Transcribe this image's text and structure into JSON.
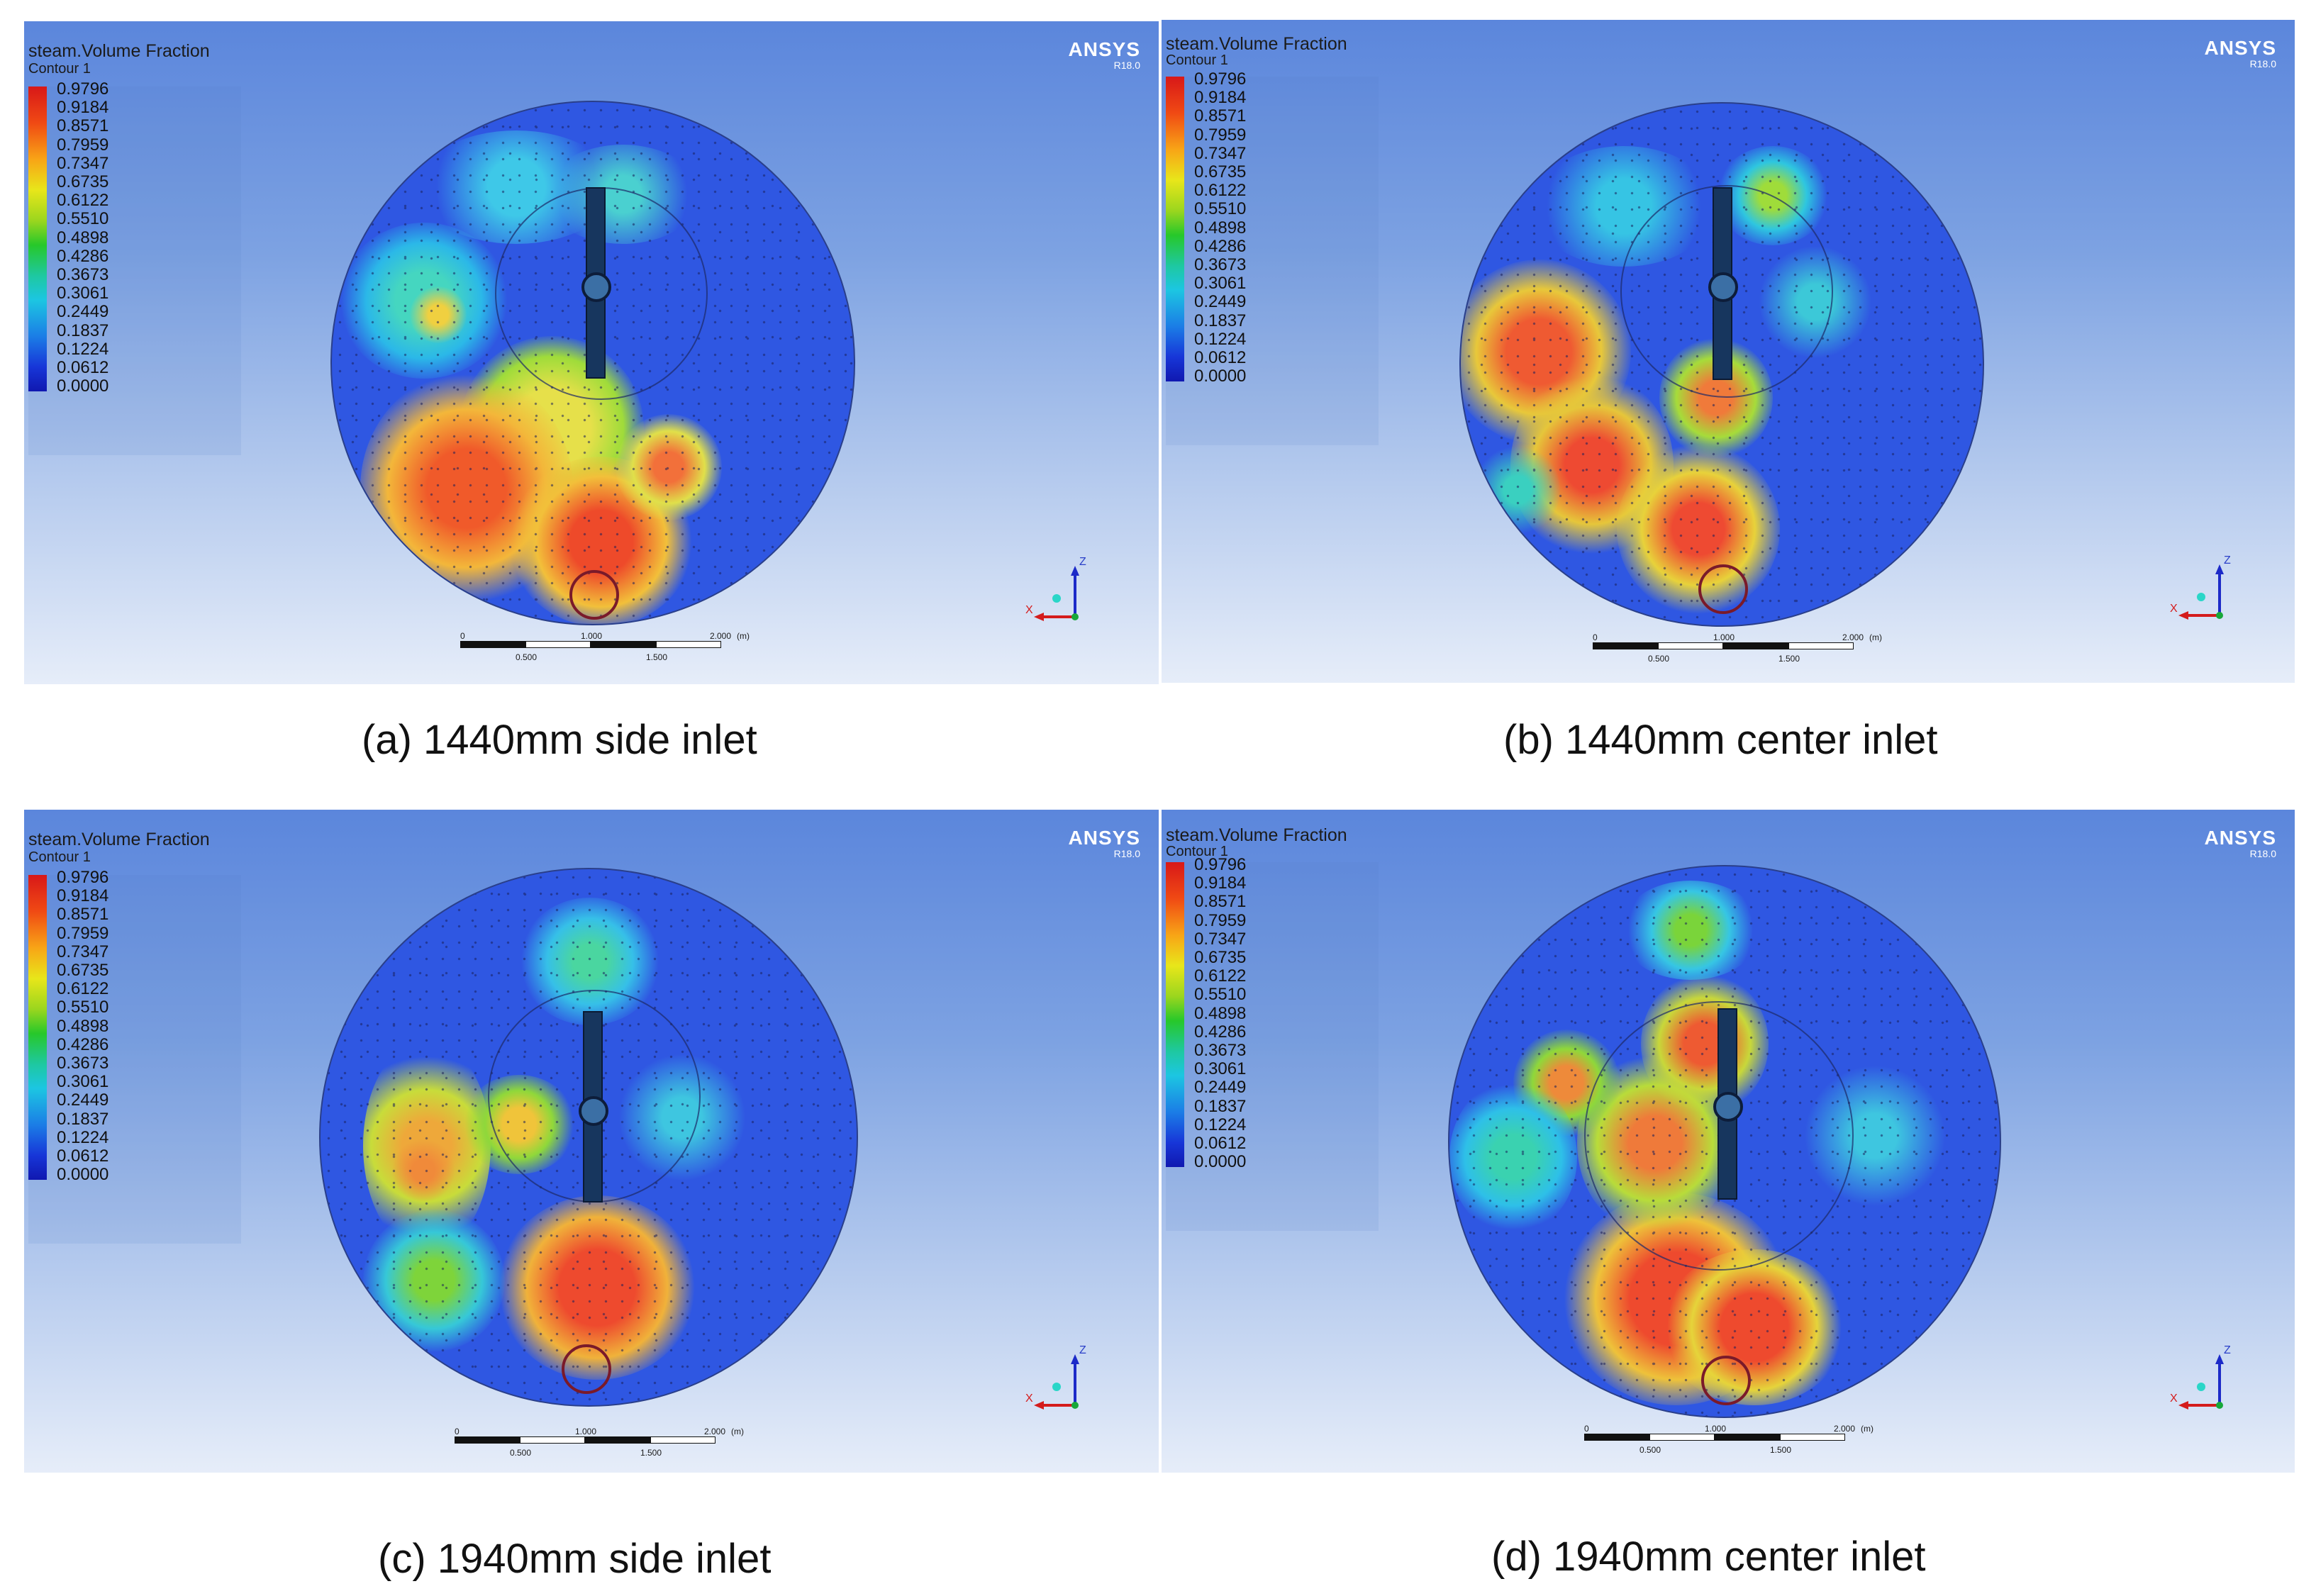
{
  "panels": [
    {
      "plot_title": "steam.Volume Fraction",
      "plot_subtitle": "Contour 1",
      "brand": "ANSYS",
      "version": "R18.0",
      "legend_values": [
        "0.9796",
        "0.9184",
        "0.8571",
        "0.7959",
        "0.7347",
        "0.6735",
        "0.6122",
        "0.5510",
        "0.4898",
        "0.4286",
        "0.3673",
        "0.3061",
        "0.2449",
        "0.1837",
        "0.1224",
        "0.0612",
        "0.0000"
      ],
      "scale_top_labels": [
        "0",
        "1.000",
        "2.000",
        "(m)"
      ],
      "scale_bottom_labels": [
        "0.500",
        "1.500"
      ],
      "axis_labels": [
        "Z",
        "X"
      ],
      "caption": "(a) 1440mm side inlet"
    },
    {
      "plot_title": "steam.Volume Fraction",
      "plot_subtitle": "Contour 1",
      "brand": "ANSYS",
      "version": "R18.0",
      "legend_values": [
        "0.9796",
        "0.9184",
        "0.8571",
        "0.7959",
        "0.7347",
        "0.6735",
        "0.6122",
        "0.5510",
        "0.4898",
        "0.4286",
        "0.3673",
        "0.3061",
        "0.2449",
        "0.1837",
        "0.1224",
        "0.0612",
        "0.0000"
      ],
      "scale_top_labels": [
        "0",
        "1.000",
        "2.000",
        "(m)"
      ],
      "scale_bottom_labels": [
        "0.500",
        "1.500"
      ],
      "axis_labels": [
        "Z",
        "X"
      ],
      "caption": "(b) 1440mm center inlet"
    },
    {
      "plot_title": "steam.Volume Fraction",
      "plot_subtitle": "Contour 1",
      "brand": "ANSYS",
      "version": "R18.0",
      "legend_values": [
        "0.9796",
        "0.9184",
        "0.8571",
        "0.7959",
        "0.7347",
        "0.6735",
        "0.6122",
        "0.5510",
        "0.4898",
        "0.4286",
        "0.3673",
        "0.3061",
        "0.2449",
        "0.1837",
        "0.1224",
        "0.0612",
        "0.0000"
      ],
      "scale_top_labels": [
        "0",
        "1.000",
        "2.000",
        "(m)"
      ],
      "scale_bottom_labels": [
        "0.500",
        "1.500"
      ],
      "axis_labels": [
        "Z",
        "X"
      ],
      "caption": "(c) 1940mm side inlet"
    },
    {
      "plot_title": "steam.Volume Fraction",
      "plot_subtitle": "Contour 1",
      "brand": "ANSYS",
      "version": "R18.0",
      "legend_values": [
        "0.9796",
        "0.9184",
        "0.8571",
        "0.7959",
        "0.7347",
        "0.6735",
        "0.6122",
        "0.5510",
        "0.4898",
        "0.4286",
        "0.3673",
        "0.3061",
        "0.2449",
        "0.1837",
        "0.1224",
        "0.0612",
        "0.0000"
      ],
      "scale_top_labels": [
        "0",
        "1.000",
        "2.000",
        "(m)"
      ],
      "scale_bottom_labels": [
        "0.500",
        "1.500"
      ],
      "axis_labels": [
        "Z",
        "X"
      ],
      "caption": "(d) 1940mm center inlet"
    }
  ],
  "colors": {
    "background_top": "#5b86dc",
    "background_bottom": "#e6edf9",
    "low_fraction": "#2f57e2",
    "high_fraction": "#e8452a"
  }
}
